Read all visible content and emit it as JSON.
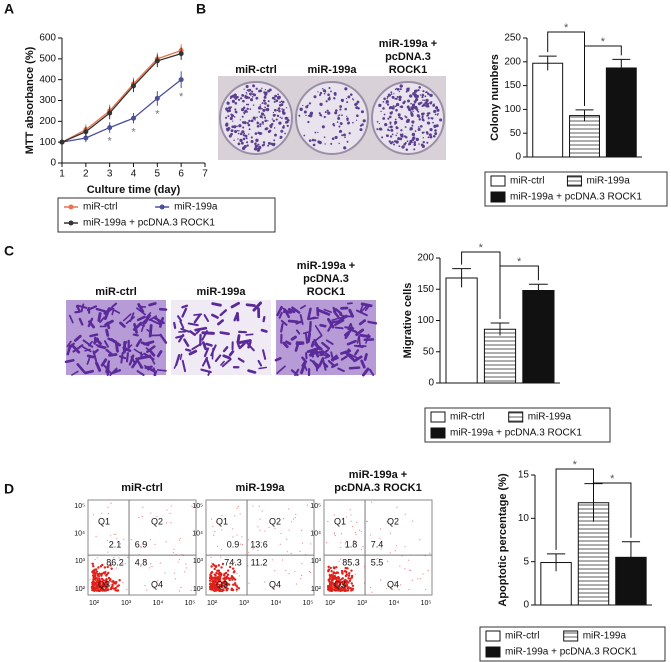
{
  "chart_data": [
    {
      "type": "line",
      "xlabel": "Culture time (day)",
      "ylabel": "MTT absorbance (%)",
      "x": [
        1,
        2,
        3,
        4,
        5,
        6
      ],
      "xlim": [
        1,
        7
      ],
      "xticks": [
        1,
        2,
        3,
        4,
        5,
        6,
        7
      ],
      "ylim": [
        0,
        600
      ],
      "yticks": [
        0,
        100,
        200,
        300,
        400,
        500,
        600
      ],
      "series": [
        {
          "name": "miR-ctrl",
          "color": "#e8734f",
          "values": [
            100,
            160,
            250,
            380,
            500,
            540
          ],
          "errors": [
            10,
            25,
            30,
            30,
            30,
            30
          ]
        },
        {
          "name": "miR-199a",
          "color": "#4a4f9a",
          "values": [
            100,
            120,
            170,
            215,
            310,
            400
          ],
          "errors": [
            10,
            20,
            25,
            25,
            35,
            40
          ]
        },
        {
          "name": "miR-199a + pcDNA.3 ROCK1",
          "color": "#333333",
          "values": [
            100,
            150,
            240,
            370,
            490,
            525
          ],
          "errors": [
            10,
            25,
            30,
            30,
            30,
            30
          ]
        }
      ],
      "annotations": [
        {
          "x": 3,
          "text": "*"
        },
        {
          "x": 4,
          "text": "*"
        },
        {
          "x": 5,
          "text": "*"
        },
        {
          "x": 6,
          "text": "*"
        }
      ]
    },
    {
      "type": "bar",
      "ylabel": "Colony numbers",
      "categories": [
        null
      ],
      "ylim": [
        0,
        250
      ],
      "yticks": [
        0,
        50,
        100,
        150,
        200,
        250
      ],
      "series": [
        {
          "name": "miR-ctrl",
          "color": "#ffffff",
          "values": [
            197
          ],
          "errors": [
            15
          ]
        },
        {
          "name": "miR-199a",
          "color": "#ffffff",
          "pattern": "stripes",
          "values": [
            87
          ],
          "errors": [
            12
          ]
        },
        {
          "name": "miR-199a + pcDNA.3 ROCK1",
          "color": "#111111",
          "values": [
            187
          ],
          "errors": [
            18
          ]
        }
      ],
      "annotations": [
        {
          "text": "*",
          "from": 0,
          "to": 1
        },
        {
          "text": "*",
          "from": 1,
          "to": 2
        }
      ]
    },
    {
      "type": "bar",
      "ylabel": "Migrative cells",
      "categories": [
        null
      ],
      "ylim": [
        0,
        200
      ],
      "yticks": [
        0,
        50,
        100,
        150,
        200
      ],
      "series": [
        {
          "name": "miR-ctrl",
          "color": "#ffffff",
          "values": [
            168
          ],
          "errors": [
            15
          ]
        },
        {
          "name": "miR-199a",
          "color": "#ffffff",
          "pattern": "stripes",
          "values": [
            86
          ],
          "errors": [
            10
          ]
        },
        {
          "name": "miR-199a + pcDNA.3 ROCK1",
          "color": "#111111",
          "values": [
            148
          ],
          "errors": [
            10
          ]
        }
      ],
      "annotations": [
        {
          "text": "*",
          "from": 0,
          "to": 1
        },
        {
          "text": "*",
          "from": 1,
          "to": 2
        }
      ]
    },
    {
      "type": "bar",
      "ylabel": "Apoptotic percentage (%)",
      "categories": [
        null
      ],
      "ylim": [
        0,
        15
      ],
      "yticks": [
        0,
        5,
        10,
        15
      ],
      "series": [
        {
          "name": "miR-ctrl",
          "color": "#ffffff",
          "values": [
            4.9
          ],
          "errors": [
            1
          ]
        },
        {
          "name": "miR-199a",
          "color": "#ffffff",
          "pattern": "stripes",
          "values": [
            11.8
          ],
          "errors": [
            2.2
          ]
        },
        {
          "name": "miR-199a + pcDNA.3 ROCK1",
          "color": "#111111",
          "values": [
            5.5
          ],
          "errors": [
            1.8
          ]
        }
      ],
      "annotations": [
        {
          "text": "*",
          "from": 0,
          "to": 1
        },
        {
          "text": "*",
          "from": 1,
          "to": 2
        }
      ]
    }
  ],
  "panels": {
    "labels": [
      "A",
      "B",
      "C",
      "D"
    ]
  },
  "colony_images": {
    "labels": [
      [
        "miR-ctrl"
      ],
      [
        "miR-199a"
      ],
      [
        "miR-199a +",
        "pcDNA.3",
        "ROCK1"
      ]
    ]
  },
  "migration_images": {
    "labels": [
      [
        "miR-ctrl"
      ],
      [
        "miR-199a"
      ],
      [
        "miR-199a +",
        "pcDNA.3",
        "ROCK1"
      ]
    ]
  },
  "flow_plots": {
    "titles": [
      [
        "miR-ctrl"
      ],
      [
        "miR-199a"
      ],
      [
        "miR-199a +",
        "pcDNA.3 ROCK1"
      ]
    ],
    "quadrants": [
      "Q1",
      "Q2",
      "Q3",
      "Q4"
    ],
    "ticks": [
      "10²",
      "10³",
      "10⁴",
      "10⁵"
    ],
    "values": [
      [
        2.1,
        6.9,
        86.2,
        4.8
      ],
      [
        0.9,
        13.6,
        74.3,
        11.2
      ],
      [
        1.8,
        7.4,
        85.3,
        5.5
      ]
    ]
  }
}
